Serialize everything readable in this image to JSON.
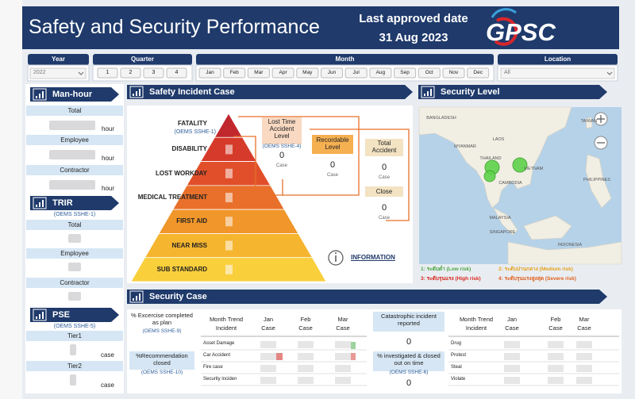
{
  "header": {
    "title": "Safety and Security Performance",
    "approved_label": "Last approved date",
    "approved_date": "31 Aug 2023",
    "logo": "GPSC"
  },
  "filters": {
    "year": {
      "label": "Year",
      "value": "2022"
    },
    "quarter": {
      "label": "Quarter",
      "options": [
        "1",
        "2",
        "3",
        "4"
      ]
    },
    "month": {
      "label": "Month",
      "options": [
        "Jan",
        "Feb",
        "Mar",
        "Apr",
        "May",
        "Jun",
        "Jul",
        "Aug",
        "Sep",
        "Oct",
        "Nov",
        "Dec"
      ]
    },
    "location": {
      "label": "Location",
      "value": "All"
    }
  },
  "manhour": {
    "title": "Man-hour",
    "rows": [
      {
        "label": "Total",
        "unit": "hour"
      },
      {
        "label": "Employee",
        "unit": "hour"
      },
      {
        "label": "Contractor",
        "unit": "hour"
      }
    ]
  },
  "trir": {
    "title": "TRIR",
    "subtitle": "(OEMS SSHE-1)",
    "rows": [
      "Total",
      "Employee",
      "Contractor"
    ]
  },
  "pse": {
    "title": "PSE",
    "subtitle": "(OEMS SSHE-5)",
    "rows": [
      {
        "label": "Tier1",
        "unit": "case"
      },
      {
        "label": "Tier2",
        "unit": "case"
      }
    ]
  },
  "safety": {
    "title": "Safety Incident Case",
    "levels": [
      "FATALITY",
      "DISABILITY",
      "LOST WORKDAY",
      "MEDICAL TREATMENT",
      "FIRST AID",
      "NEAR MISS",
      "SUB STANDARD"
    ],
    "fatality_sub": "(OEMS SSHE-1)",
    "lost_time": {
      "label": "Lost Time Accident Level",
      "sub": "(OEMS SSHE-4)",
      "value": 0,
      "unit": "Case"
    },
    "recordable": {
      "label": "Recordable Level",
      "value": 0,
      "unit": "Case"
    },
    "total": {
      "label": "Total Accident",
      "value": 0,
      "unit": "Case"
    },
    "close": {
      "label": "Close",
      "value": 0,
      "unit": "Case"
    },
    "information": "INFORMATION"
  },
  "security_level": {
    "title": "Security Level",
    "map_labels": [
      "BANGLADESH",
      "MYANMAR",
      "LAOS",
      "THAILAND",
      "VIETNAM",
      "CAMBODIA",
      "TAIWAN",
      "PHILIPPINES",
      "MALAYSIA",
      "SINGAPORE",
      "INDONESIA"
    ],
    "legend": [
      "1: ระดับต่ำ (Low risk)",
      "2: ระดับปานกลาง (Medium risk)",
      "3: ระดับรุนแรง (High risk)",
      "4: ระดับรุนแรงสูงสุด (Severe risk)"
    ]
  },
  "security_case": {
    "title": "Security Case",
    "exercise": {
      "label": "% Excercise completed as plan",
      "sub": "(OEMS SSHE-9)"
    },
    "recommendation": {
      "label": "%Recommendation closed",
      "sub": "(OEMS SSHE-10)"
    },
    "table1": {
      "header": [
        "Month Trend",
        "Jan",
        "Feb",
        "Mar"
      ],
      "subheader": [
        "Incident",
        "Case",
        "Case",
        "Case"
      ],
      "rows": [
        "Asset Damage",
        "Car Accident",
        "Fire case",
        "Security inciden"
      ]
    },
    "catastrophic": {
      "label": "Catastrophic incident reported",
      "value": 0
    },
    "investigated": {
      "label": "% investigated & closed out on time",
      "sub": "(OEMS SSHE-6)",
      "value": 0
    },
    "table2": {
      "header": [
        "Month Trend",
        "Jan",
        "Feb",
        "Mar"
      ],
      "subheader": [
        "Incident",
        "Case",
        "Case",
        "Case"
      ],
      "rows": [
        "Drug",
        "Protest",
        "Steal",
        "Violate"
      ]
    }
  }
}
